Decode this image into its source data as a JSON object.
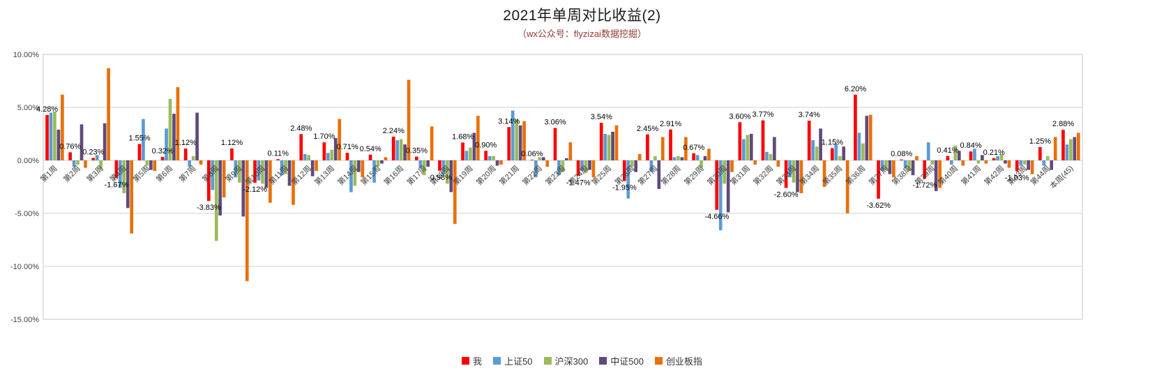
{
  "chart_data": {
    "type": "bar",
    "title": "2021年单周对比收益(2)",
    "subtitle": "（wx公众号：flyzizai数据挖掘）",
    "xlabel": "",
    "ylabel": "",
    "ylim": [
      -15,
      10
    ],
    "grid": true,
    "legend_position": "bottom",
    "data_labels_series": "我",
    "y_axis": {
      "ticks": [
        {
          "label": "10.00%",
          "value": 10
        },
        {
          "label": "5.00%",
          "value": 5
        },
        {
          "label": "0.00%",
          "value": 0
        },
        {
          "label": "-5.00%",
          "value": -5
        },
        {
          "label": "-10.00%",
          "value": -10
        },
        {
          "label": "-15.00%",
          "value": -15
        }
      ]
    },
    "categories": [
      "第1周",
      "第2周",
      "第3周",
      "第4周",
      "第5周",
      "第6周",
      "第7周",
      "第8周",
      "第9周",
      "第10周",
      "第11周",
      "第12周",
      "第13周",
      "第14周",
      "第15周",
      "第16周",
      "第17周",
      "第18周",
      "第19周",
      "第20周",
      "第21周",
      "第22周",
      "第23周",
      "第24周",
      "第25周",
      "第26周",
      "第27周",
      "第28周",
      "第29周",
      "第30周",
      "第31周",
      "第32周",
      "第33周",
      "第34周",
      "第35周",
      "第36周",
      "第37周",
      "第38周",
      "第39周",
      "第40周",
      "第41周",
      "第42周",
      "第43周",
      "第44周",
      "本周(45)"
    ],
    "series": [
      {
        "name": "我",
        "color": "#ff0000",
        "values": [
          4.28,
          0.76,
          0.23,
          -1.67,
          1.55,
          0.32,
          1.12,
          -3.83,
          1.12,
          -2.12,
          0.11,
          2.48,
          1.7,
          0.71,
          0.54,
          2.24,
          0.35,
          -0.98,
          1.68,
          0.9,
          3.14,
          0.06,
          3.06,
          -1.47,
          3.54,
          -1.95,
          2.45,
          2.91,
          0.67,
          -4.66,
          3.6,
          3.77,
          -2.6,
          3.74,
          1.15,
          6.2,
          -3.62,
          0.08,
          -1.72,
          0.41,
          0.84,
          0.21,
          -1.03,
          1.25,
          2.88
        ]
      },
      {
        "name": "上证50",
        "color": "#5a9bd4",
        "values": [
          4.5,
          -0.6,
          0.5,
          -2.6,
          3.9,
          3.0,
          -0.6,
          -2.8,
          -1.6,
          -1.9,
          -1.4,
          0.6,
          0.7,
          -3.0,
          -2.1,
          1.9,
          -0.7,
          -1.3,
          0.9,
          0.4,
          4.7,
          -1.6,
          -1.4,
          -1.0,
          2.5,
          -3.6,
          -1.1,
          0.3,
          0.5,
          -6.6,
          2.0,
          0.8,
          -1.6,
          1.9,
          1.6,
          2.6,
          -1.0,
          -0.7,
          1.7,
          -0.4,
          1.1,
          0.4,
          -0.5,
          -0.5,
          1.5
        ]
      },
      {
        "name": "沪深300",
        "color": "#9bbb59",
        "values": [
          4.6,
          -0.4,
          -0.8,
          -3.1,
          -0.5,
          5.8,
          0.4,
          -7.6,
          -2.1,
          -2.2,
          -1.3,
          0.5,
          1.0,
          -2.4,
          -0.6,
          2.0,
          -1.4,
          -2.2,
          1.2,
          0.4,
          3.9,
          0.3,
          -1.1,
          -1.2,
          2.4,
          -0.6,
          0.4,
          0.4,
          -0.7,
          -2.2,
          2.4,
          0.6,
          -2.1,
          1.3,
          0.4,
          1.6,
          -0.9,
          -1.0,
          -0.4,
          1.4,
          -0.3,
          0.6,
          -0.4,
          0.4,
          2.0
        ]
      },
      {
        "name": "中证500",
        "color": "#604a7b",
        "values": [
          2.9,
          3.4,
          3.5,
          -4.5,
          -0.9,
          4.4,
          4.5,
          -5.2,
          -5.3,
          -2.6,
          -2.4,
          -1.5,
          2.1,
          -1.1,
          -0.3,
          1.5,
          -0.6,
          -3.0,
          2.6,
          -0.5,
          3.3,
          0.3,
          0.2,
          -0.9,
          2.7,
          -1.1,
          -2.7,
          0.3,
          0.4,
          -4.9,
          2.5,
          2.2,
          -3.0,
          3.0,
          1.3,
          4.2,
          -1.3,
          -1.4,
          -2.9,
          0.9,
          0.5,
          -0.3,
          -0.9,
          -0.9,
          2.2
        ]
      },
      {
        "name": "创业板指",
        "color": "#e8700a",
        "values": [
          6.2,
          -0.7,
          8.7,
          -6.9,
          -1.0,
          6.9,
          -0.4,
          -3.5,
          -11.4,
          -4.0,
          -4.2,
          -1.0,
          3.9,
          -1.6,
          0.3,
          7.6,
          3.2,
          -6.0,
          4.2,
          -0.4,
          3.7,
          -0.6,
          1.7,
          -1.6,
          3.3,
          0.6,
          2.2,
          2.2,
          1.1,
          -1.1,
          -0.4,
          -0.6,
          -3.1,
          -2.5,
          -5.0,
          4.3,
          -1.6,
          0.4,
          -2.6,
          -0.5,
          -0.3,
          -0.7,
          -1.3,
          2.2,
          2.6
        ]
      }
    ]
  }
}
